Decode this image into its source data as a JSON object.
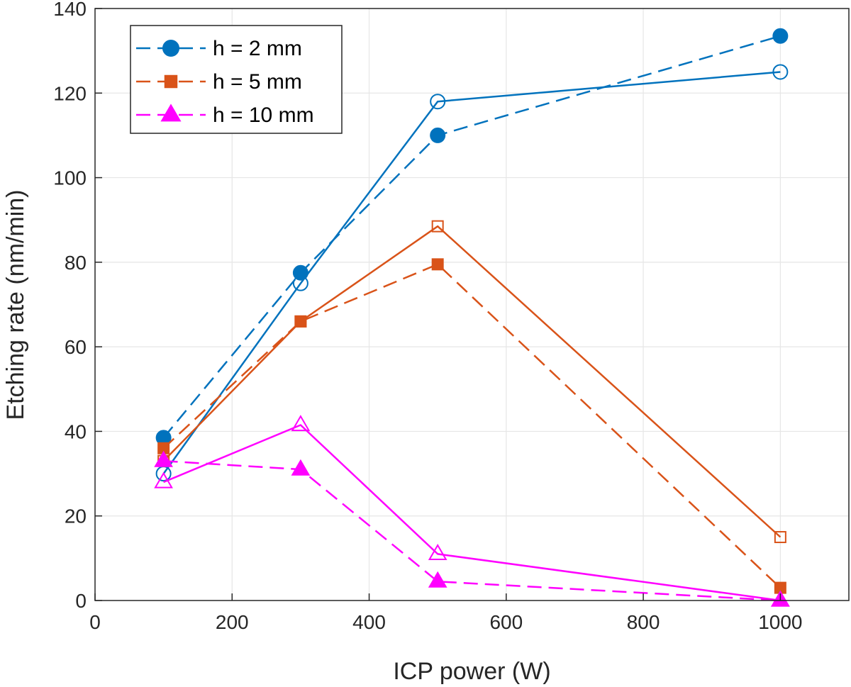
{
  "chart_data": {
    "type": "line",
    "title": "",
    "xlabel": "ICP power (W)",
    "ylabel": "Etching rate (nm/min)",
    "xlim": [
      0,
      1100
    ],
    "ylim": [
      0,
      140
    ],
    "xticks": [
      0,
      200,
      400,
      600,
      800,
      1000
    ],
    "yticks": [
      0,
      20,
      40,
      60,
      80,
      100,
      120,
      140
    ],
    "grid": true,
    "legend_position": "top-left",
    "legend": [
      {
        "label": "h = 2 mm",
        "color": "#0072BD",
        "marker": "circle"
      },
      {
        "label": "h = 5 mm",
        "color": "#D95319",
        "marker": "square"
      },
      {
        "label": "h = 10 mm",
        "color": "#FF00FF",
        "marker": "triangle"
      }
    ],
    "x": [
      100,
      300,
      500,
      1000
    ],
    "series": [
      {
        "name": "h = 2 mm (dashed, filled)",
        "group": "h = 2 mm",
        "color": "#0072BD",
        "marker": "circle",
        "filled": true,
        "dashed": true,
        "values": [
          38.5,
          77.5,
          110,
          133.5
        ]
      },
      {
        "name": "h = 2 mm (solid, open)",
        "group": "h = 2 mm",
        "color": "#0072BD",
        "marker": "circle",
        "filled": false,
        "dashed": false,
        "values": [
          30,
          75,
          118,
          125
        ]
      },
      {
        "name": "h = 5 mm (dashed, filled)",
        "group": "h = 5 mm",
        "color": "#D95319",
        "marker": "square",
        "filled": true,
        "dashed": true,
        "values": [
          36,
          66,
          79.5,
          3
        ]
      },
      {
        "name": "h = 5 mm (solid, open)",
        "group": "h = 5 mm",
        "color": "#D95319",
        "marker": "square",
        "filled": false,
        "dashed": false,
        "values": [
          33,
          66,
          88.5,
          15
        ]
      },
      {
        "name": "h = 10 mm (dashed, filled)",
        "group": "h = 10 mm",
        "color": "#FF00FF",
        "marker": "triangle",
        "filled": true,
        "dashed": true,
        "values": [
          33,
          31,
          4.5,
          0
        ]
      },
      {
        "name": "h = 10 mm (solid, open)",
        "group": "h = 10 mm",
        "color": "#FF00FF",
        "marker": "triangle",
        "filled": false,
        "dashed": false,
        "values": [
          28,
          41.5,
          11,
          0
        ]
      }
    ]
  }
}
